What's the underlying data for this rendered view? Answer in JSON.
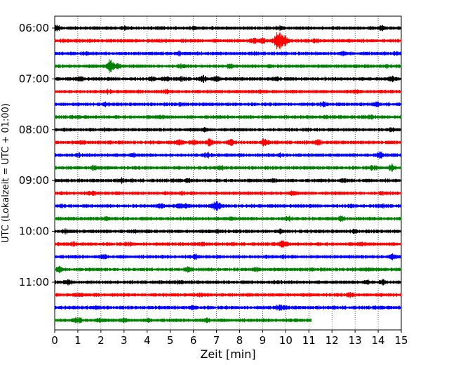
{
  "chart_data": {
    "type": "line",
    "subtype": "helicorder",
    "xlabel": "Zeit  [min]",
    "ylabel": "UTC (Lokalzeit = UTC + 01:00)",
    "xlim": [
      0,
      15
    ],
    "xticks": [
      0,
      1,
      2,
      3,
      4,
      5,
      6,
      7,
      8,
      9,
      10,
      11,
      12,
      13,
      14,
      15
    ],
    "yticks": [
      "06:00",
      "07:00",
      "08:00",
      "09:00",
      "10:00",
      "11:00"
    ],
    "line_interval_min": 15,
    "grid": "vertical-dotted",
    "colors": [
      "#000000",
      "#ff0000",
      "#0000ff",
      "#008000"
    ],
    "traces": [
      {
        "start": "06:00",
        "color": "#000000",
        "end_min": 15,
        "events": [
          [
            0.1,
            2.0
          ],
          [
            3.0,
            1.6
          ],
          [
            6.0,
            1.8
          ],
          [
            9.7,
            1.6
          ],
          [
            14.2,
            1.8
          ]
        ]
      },
      {
        "start": "06:15",
        "color": "#ff0000",
        "end_min": 15,
        "events": [
          [
            0.3,
            1.5
          ],
          [
            8.6,
            2.0
          ],
          [
            9.0,
            2.2
          ],
          [
            9.6,
            3.6
          ],
          [
            9.8,
            3.2
          ],
          [
            10.0,
            2.2
          ],
          [
            11.3,
            1.5
          ]
        ]
      },
      {
        "start": "06:30",
        "color": "#0000ff",
        "end_min": 15,
        "events": [
          [
            1.3,
            1.5
          ],
          [
            5.4,
            1.5
          ],
          [
            8.6,
            1.5
          ],
          [
            12.5,
            1.5
          ],
          [
            14.8,
            1.6
          ]
        ]
      },
      {
        "start": "06:45",
        "color": "#008000",
        "end_min": 15,
        "events": [
          [
            2.4,
            4.2
          ],
          [
            2.7,
            2.6
          ],
          [
            5.5,
            1.8
          ],
          [
            7.6,
            1.6
          ],
          [
            9.3,
            1.5
          ],
          [
            14.4,
            1.5
          ]
        ]
      },
      {
        "start": "07:00",
        "color": "#000000",
        "end_min": 15,
        "events": [
          [
            1.1,
            1.8
          ],
          [
            4.2,
            1.7
          ],
          [
            4.8,
            2.0
          ],
          [
            5.5,
            1.8
          ],
          [
            6.4,
            2.1
          ],
          [
            7.0,
            1.8
          ],
          [
            9.6,
            1.8
          ],
          [
            14.6,
            2.0
          ]
        ]
      },
      {
        "start": "07:15",
        "color": "#ff0000",
        "end_min": 15,
        "events": [
          [
            2.3,
            1.6
          ],
          [
            4.8,
            1.5
          ],
          [
            8.9,
            1.5
          ],
          [
            13.1,
            1.5
          ]
        ]
      },
      {
        "start": "07:30",
        "color": "#0000ff",
        "end_min": 15,
        "events": [
          [
            2.2,
            1.5
          ],
          [
            5.5,
            1.5
          ],
          [
            11.6,
            1.9
          ],
          [
            13.9,
            1.6
          ]
        ]
      },
      {
        "start": "07:45",
        "color": "#008000",
        "end_min": 15,
        "events": [
          [
            4.6,
            1.5
          ],
          [
            11.7,
            1.6
          ],
          [
            13.7,
            2.0
          ]
        ]
      },
      {
        "start": "08:00",
        "color": "#000000",
        "end_min": 15,
        "events": [
          [
            2.2,
            1.5
          ],
          [
            6.5,
            1.6
          ],
          [
            10.9,
            1.5
          ],
          [
            14.6,
            1.6
          ]
        ]
      },
      {
        "start": "08:15",
        "color": "#ff0000",
        "end_min": 15,
        "events": [
          [
            1.2,
            1.5
          ],
          [
            5.4,
            2.0
          ],
          [
            6.0,
            1.8
          ],
          [
            6.7,
            2.2
          ],
          [
            7.6,
            2.6
          ],
          [
            9.1,
            3.0
          ],
          [
            11.4,
            1.8
          ]
        ]
      },
      {
        "start": "08:30",
        "color": "#0000ff",
        "end_min": 15,
        "events": [
          [
            1.0,
            1.5
          ],
          [
            3.4,
            1.5
          ],
          [
            6.6,
            2.0
          ],
          [
            9.8,
            1.6
          ],
          [
            14.1,
            2.6
          ]
        ]
      },
      {
        "start": "08:45",
        "color": "#008000",
        "end_min": 15,
        "events": [
          [
            1.7,
            2.0
          ],
          [
            7.2,
            1.5
          ],
          [
            13.8,
            1.8
          ],
          [
            14.6,
            2.4
          ]
        ]
      },
      {
        "start": "09:00",
        "color": "#000000",
        "end_min": 15,
        "events": [
          [
            2.9,
            1.8
          ],
          [
            5.8,
            1.5
          ],
          [
            9.5,
            1.6
          ],
          [
            12.5,
            1.6
          ]
        ]
      },
      {
        "start": "09:15",
        "color": "#ff0000",
        "end_min": 15,
        "events": [
          [
            1.6,
            1.5
          ],
          [
            5.5,
            1.5
          ],
          [
            10.3,
            1.5
          ],
          [
            14.2,
            1.5
          ]
        ]
      },
      {
        "start": "09:30",
        "color": "#0000ff",
        "end_min": 15,
        "events": [
          [
            0.3,
            1.6
          ],
          [
            4.6,
            1.9
          ],
          [
            5.4,
            1.7
          ],
          [
            5.7,
            1.7
          ],
          [
            7.0,
            3.6
          ],
          [
            12.8,
            1.5
          ],
          [
            14.2,
            1.5
          ]
        ]
      },
      {
        "start": "09:45",
        "color": "#008000",
        "end_min": 15,
        "events": [
          [
            2.2,
            1.5
          ],
          [
            7.6,
            1.5
          ],
          [
            10.1,
            2.0
          ],
          [
            12.4,
            1.6
          ]
        ]
      },
      {
        "start": "10:00",
        "color": "#000000",
        "end_min": 15,
        "events": [
          [
            0.5,
            1.6
          ],
          [
            3.5,
            1.5
          ],
          [
            7.1,
            1.6
          ],
          [
            9.8,
            1.5
          ],
          [
            13.0,
            1.5
          ]
        ]
      },
      {
        "start": "10:15",
        "color": "#ff0000",
        "end_min": 15,
        "events": [
          [
            0.8,
            1.5
          ],
          [
            3.2,
            1.5
          ],
          [
            6.4,
            1.5
          ],
          [
            9.9,
            2.4
          ],
          [
            13.3,
            1.5
          ]
        ]
      },
      {
        "start": "10:30",
        "color": "#0000ff",
        "end_min": 15,
        "events": [
          [
            2.1,
            1.6
          ],
          [
            6.1,
            1.5
          ],
          [
            9.9,
            1.5
          ],
          [
            14.6,
            1.8
          ]
        ]
      },
      {
        "start": "10:45",
        "color": "#008000",
        "end_min": 15,
        "events": [
          [
            0.2,
            2.2
          ],
          [
            5.8,
            1.8
          ],
          [
            8.7,
            1.6
          ],
          [
            13.5,
            1.5
          ]
        ]
      },
      {
        "start": "11:00",
        "color": "#000000",
        "end_min": 15,
        "events": [
          [
            0.6,
            1.6
          ],
          [
            5.4,
            1.6
          ],
          [
            9.6,
            1.5
          ],
          [
            13.5,
            1.8
          ],
          [
            14.2,
            2.0
          ]
        ]
      },
      {
        "start": "11:15",
        "color": "#ff0000",
        "end_min": 15,
        "events": [
          [
            1.0,
            1.5
          ],
          [
            6.3,
            1.5
          ],
          [
            12.8,
            1.8
          ]
        ]
      },
      {
        "start": "11:30",
        "color": "#0000ff",
        "end_min": 15,
        "events": [
          [
            1.8,
            1.5
          ],
          [
            6.0,
            1.7
          ],
          [
            9.7,
            2.0
          ],
          [
            10.0,
            1.6
          ]
        ]
      },
      {
        "start": "11:45",
        "color": "#008000",
        "end_min": 11.1,
        "events": [
          [
            1.0,
            2.4
          ],
          [
            1.9,
            1.8
          ],
          [
            3.0,
            1.6
          ],
          [
            4.1,
            1.5
          ],
          [
            6.6,
            1.5
          ]
        ]
      }
    ]
  }
}
